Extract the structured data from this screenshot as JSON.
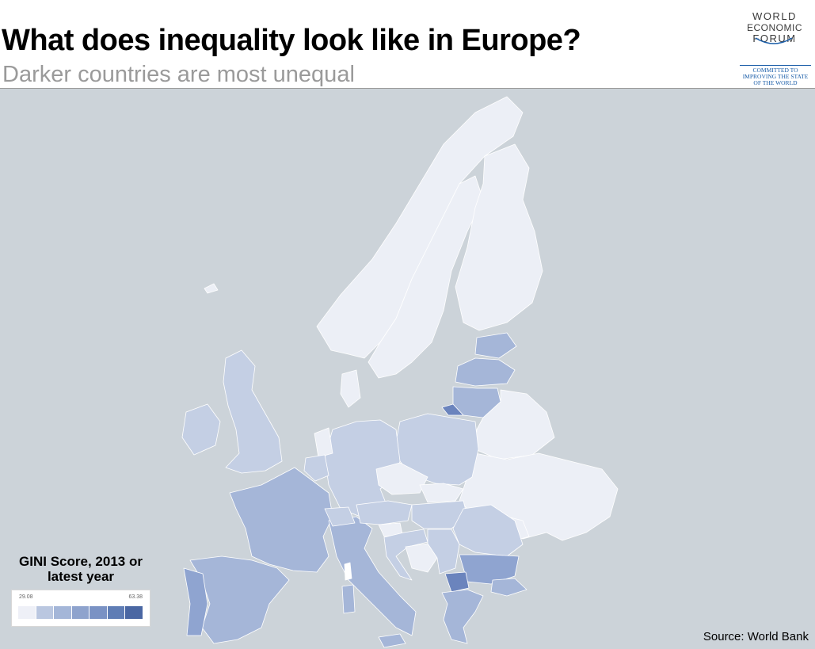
{
  "header": {
    "title": "What does inequality look like in Europe?",
    "subtitle": "Darker countries are most unequal"
  },
  "logo": {
    "line1": "WORLD",
    "line2": "ECONOMIC",
    "line3": "FORUM",
    "tagline": "COMMITTED TO IMPROVING THE STATE OF THE WORLD"
  },
  "legend": {
    "title": "GINI Score, 2013 or latest year",
    "min_label": "29.08",
    "max_label": "63.38",
    "min": 29.08,
    "max": 63.38,
    "scale_colors": [
      "#eef0f7",
      "#bac7e0",
      "#a4b6d8",
      "#8ea3cd",
      "#7a92c4",
      "#5f7db5",
      "#4a67a3"
    ]
  },
  "source": "Source: World Bank",
  "colors": {
    "sea": "#ccd3d9",
    "lightest": "#eceff6",
    "light": "#c4cfe4",
    "medium": "#a5b6d8",
    "dark": "#6b84bd"
  },
  "regions": [
    {
      "name": "Norway",
      "shade": 0
    },
    {
      "name": "Sweden",
      "shade": 0
    },
    {
      "name": "Finland",
      "shade": 0
    },
    {
      "name": "Iceland",
      "shade": 0
    },
    {
      "name": "Estonia",
      "shade": 2
    },
    {
      "name": "Latvia",
      "shade": 2
    },
    {
      "name": "Lithuania",
      "shade": 2
    },
    {
      "name": "Kaliningrad",
      "shade": 4
    },
    {
      "name": "Belarus",
      "shade": 0
    },
    {
      "name": "Ukraine",
      "shade": 0
    },
    {
      "name": "Moldova",
      "shade": 0
    },
    {
      "name": "Poland",
      "shade": 1
    },
    {
      "name": "Germany",
      "shade": 1
    },
    {
      "name": "Denmark",
      "shade": 0
    },
    {
      "name": "Netherlands",
      "shade": 0
    },
    {
      "name": "Belgium",
      "shade": 1
    },
    {
      "name": "United Kingdom",
      "shade": 1
    },
    {
      "name": "Ireland",
      "shade": 1
    },
    {
      "name": "France",
      "shade": 2
    },
    {
      "name": "Spain",
      "shade": 2
    },
    {
      "name": "Portugal",
      "shade": 3
    },
    {
      "name": "Italy",
      "shade": 2
    },
    {
      "name": "Switzerland",
      "shade": 1
    },
    {
      "name": "Austria",
      "shade": 1
    },
    {
      "name": "Czech Republic",
      "shade": 0
    },
    {
      "name": "Slovakia",
      "shade": 0
    },
    {
      "name": "Hungary",
      "shade": 1
    },
    {
      "name": "Slovenia",
      "shade": 0
    },
    {
      "name": "Croatia",
      "shade": 1
    },
    {
      "name": "Bosnia and Herzegovina",
      "shade": 0
    },
    {
      "name": "Serbia",
      "shade": 1
    },
    {
      "name": "Romania",
      "shade": 1
    },
    {
      "name": "Bulgaria",
      "shade": 3
    },
    {
      "name": "North Macedonia",
      "shade": 4
    },
    {
      "name": "Greece",
      "shade": 2
    },
    {
      "name": "Turkey",
      "shade": 2
    }
  ]
}
